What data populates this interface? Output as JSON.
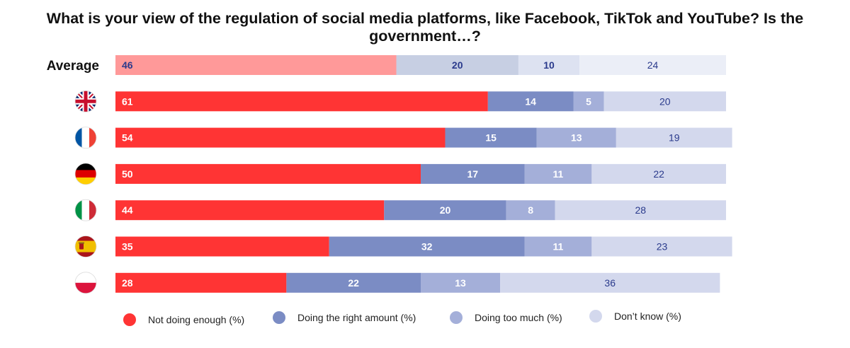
{
  "chart_data": {
    "type": "bar",
    "orientation": "horizontal",
    "stacked": true,
    "title": "What is your view of the regulation of social media platforms, like Facebook, TikTok and YouTube? Is the government…?",
    "xlim": [
      0,
      100
    ],
    "categories": [
      "Average",
      "United Kingdom",
      "France",
      "Germany",
      "Italy",
      "Spain",
      "Poland"
    ],
    "category_display": [
      "text",
      "flag",
      "flag",
      "flag",
      "flag",
      "flag",
      "flag"
    ],
    "series": [
      {
        "name": "Not doing enough  (%)",
        "values": [
          46,
          61,
          54,
          50,
          44,
          35,
          28
        ]
      },
      {
        "name": "Doing the right amount  (%)",
        "values": [
          20,
          14,
          15,
          17,
          20,
          32,
          22
        ]
      },
      {
        "name": "Doing too much  (%)",
        "values": [
          10,
          5,
          13,
          11,
          8,
          11,
          13
        ]
      },
      {
        "name": "Don’t know (%)",
        "values": [
          24,
          20,
          19,
          22,
          28,
          23,
          36
        ]
      }
    ],
    "colors": {
      "series": [
        "#ff3434",
        "#7b8cc4",
        "#a4afd9",
        "#d3d8ed"
      ],
      "average_series": [
        "#ff9999",
        "#c7cfe3",
        "#dde2f1",
        "#ebeef7"
      ],
      "label_light": "#ffffff",
      "label_dark": "#2a3a8c"
    },
    "legend": "bottom"
  }
}
